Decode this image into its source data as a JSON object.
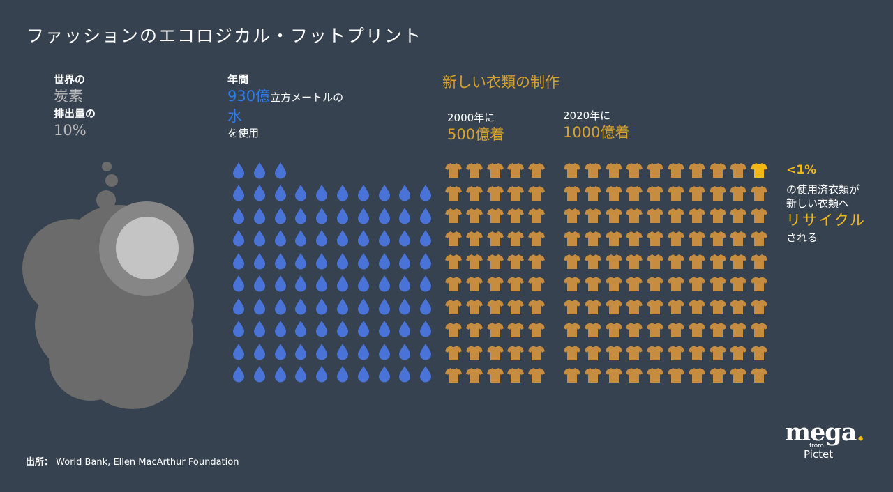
{
  "title": "ファッションのエコロジカル・フットプリント",
  "carbon": {
    "line1": "世界の",
    "line2": "炭素",
    "line3": "排出量の",
    "line4": "10%"
  },
  "water": {
    "line1": "年間",
    "amount": "930億",
    "unit": "立方メートルの",
    "word": "水",
    "line4": "を使用",
    "drop_count": 93
  },
  "clothes": {
    "title": "新しい衣類の制作",
    "y2000_label": "2000年に",
    "y2000_value": "500億着",
    "y2000_shirts": 50,
    "y2020_label": "2020年に",
    "y2020_value": "1000億着",
    "y2020_shirts": 100
  },
  "recycle": {
    "pct": "<1%",
    "line1": "の使用済衣類が",
    "line2": "新しい衣類へ",
    "line3": "リサイクル",
    "line4": "される"
  },
  "source": {
    "label": "出所：",
    "text": " World Bank, Ellen MacArthur Foundation"
  },
  "logo": {
    "mega": "mega",
    "dot": ".",
    "from": "from",
    "pictet": "Pictet"
  },
  "colors": {
    "background": "#36424f",
    "water": "#2f7bea",
    "drop": "#4a73d8",
    "clothes": "#d7a12e",
    "shirt": "#c68c3f",
    "recycle": "#f2b81a",
    "cloud": "#6b6b6b"
  }
}
